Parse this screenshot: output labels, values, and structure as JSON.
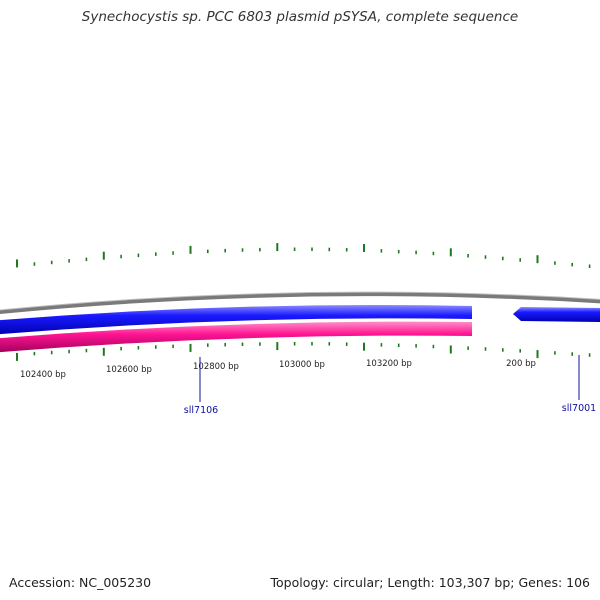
{
  "title": "Synechocystis sp. PCC 6803 plasmid pSYSA, complete sequence",
  "footer": {
    "accession": "Accession: NC_005230",
    "summary": "Topology: circular; Length: 103,307 bp; Genes: 106"
  },
  "ruler": {
    "labels": [
      "102400 bp",
      "102600 bp",
      "102800 bp",
      "103000 bp",
      "103200 bp",
      "200 bp"
    ]
  },
  "genes": [
    {
      "name": "sll7106",
      "strand": "reverse"
    },
    {
      "name": "sll7001",
      "strand": "forward"
    }
  ],
  "colors": {
    "backbone": "#808080",
    "forward_strand": "#1a1aff",
    "reverse_strand": "#ff1493",
    "tick": "#1e7a1e",
    "gene_label": "#1010a0"
  }
}
